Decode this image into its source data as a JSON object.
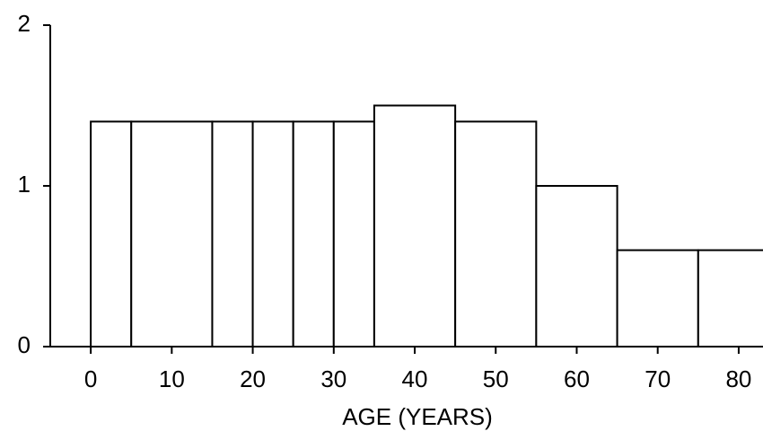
{
  "chart_data": {
    "type": "histogram",
    "x_label": "AGE (YEARS)",
    "bins": [
      0,
      5,
      15,
      20,
      25,
      30,
      35,
      45,
      55,
      65,
      75,
      85
    ],
    "values": [
      1.4,
      1.4,
      1.4,
      1.4,
      1.4,
      1.4,
      1.5,
      1.4,
      1.0,
      0.6,
      0.6
    ],
    "color": "#ffffff",
    "xlim": [
      -5,
      83
    ],
    "xticks": [
      0,
      10,
      20,
      30,
      40,
      50,
      60,
      70,
      80
    ],
    "ylim": [
      0,
      2
    ],
    "yticks": [
      0,
      1,
      2
    ]
  }
}
